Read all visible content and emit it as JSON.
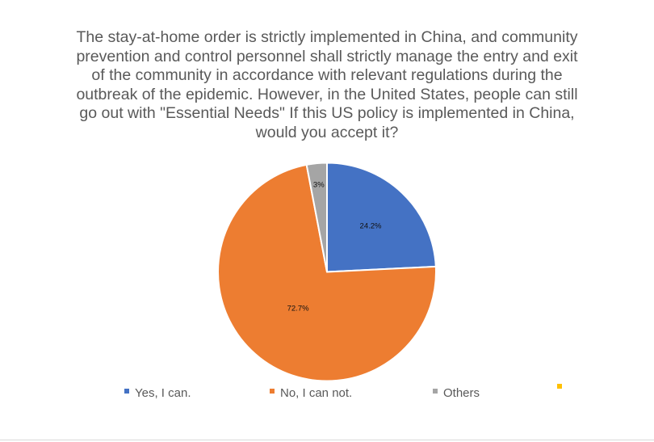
{
  "chart_data": {
    "type": "pie",
    "title": "The stay-at-home order is strictly implemented in China, and community prevention and control personnel shall strictly manage the entry and exit of the community in accordance with relevant regulations during the outbreak of the epidemic.  However, in the United States, people can still go out with \"Essential Needs\" If this US policy is implemented in China, would you accept it?",
    "categories": [
      "Yes, I can.",
      "No, I can not.",
      "Others",
      ""
    ],
    "values": [
      24.2,
      72.7,
      3,
      0
    ],
    "data_labels": [
      "24.2%",
      "72.7%",
      "3%",
      ""
    ],
    "colors": [
      "#4472C4",
      "#ED7D31",
      "#A5A5A5",
      "#FFC000"
    ],
    "legend_position": "bottom"
  }
}
